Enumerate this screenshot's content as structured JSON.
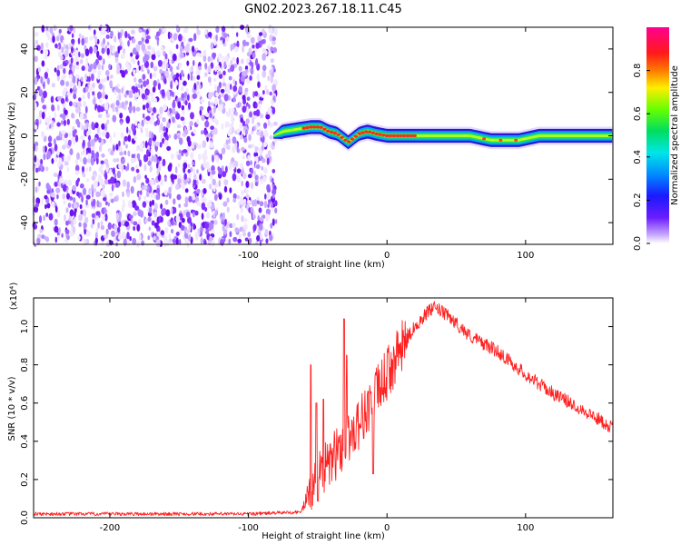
{
  "title": "GN02.2023.267.18.11.C45",
  "chart_data": [
    {
      "type": "heatmap",
      "xlabel": "Height of straight line (km)",
      "ylabel": "Frequency (Hz)",
      "xlim": [
        -255,
        163
      ],
      "ylim": [
        -50,
        50
      ],
      "xticks": [
        -200,
        -100,
        0,
        100
      ],
      "yticks": [
        -40,
        -20,
        0,
        20,
        40
      ],
      "colorbar": {
        "label": "Normalized spectral amplitude",
        "range": [
          0,
          1
        ],
        "ticks": [
          0.0,
          0.2,
          0.4,
          0.6,
          0.8
        ],
        "colormap": "rainbow (violet-blue-cyan-green-yellow-red-magenta)"
      },
      "noise_region_x": [
        -255,
        -80
      ],
      "signal_ridge": {
        "x": [
          -82,
          -75,
          -65,
          -55,
          -48,
          -42,
          -36,
          -32,
          -28,
          -24,
          -20,
          -14,
          -8,
          0,
          20,
          40,
          60,
          75,
          85,
          95,
          110,
          130,
          163
        ],
        "y": [
          0,
          2,
          3,
          4,
          4,
          2,
          1,
          -1,
          -3,
          -1,
          1,
          2,
          1,
          0,
          0,
          0,
          0,
          -2,
          -2,
          -2,
          0,
          0,
          0
        ],
        "peak_amplitude_x": [
          -60,
          20
        ]
      }
    },
    {
      "type": "line",
      "xlabel": "Height of straight line (km)",
      "ylabel": "SNR (10 * v/v)",
      "y_multiplier": "(x10⁴)",
      "xlim": [
        -255,
        163
      ],
      "ylim": [
        0,
        1.15
      ],
      "xticks": [
        -200,
        -100,
        0,
        100
      ],
      "yticks": [
        0.0,
        0.2,
        0.4,
        0.6,
        0.8,
        1.0
      ],
      "color": "#ff2020",
      "envelope": {
        "x": [
          -255,
          -100,
          -62,
          -58,
          -50,
          -40,
          -30,
          -20,
          -10,
          0,
          10,
          20,
          30,
          35,
          45,
          60,
          80,
          100,
          120,
          140,
          163
        ],
        "y": [
          0.02,
          0.02,
          0.03,
          0.1,
          0.2,
          0.3,
          0.4,
          0.5,
          0.62,
          0.75,
          0.88,
          1.0,
          1.08,
          1.1,
          1.05,
          0.95,
          0.87,
          0.75,
          0.65,
          0.57,
          0.47
        ]
      },
      "spikes": [
        {
          "x": -55,
          "y": 0.8
        },
        {
          "x": -51,
          "y": 0.6
        },
        {
          "x": -46,
          "y": 0.62
        },
        {
          "x": -31,
          "y": 1.04
        },
        {
          "x": -29,
          "y": 0.85
        },
        {
          "x": -10,
          "y": 0.23
        }
      ]
    }
  ]
}
